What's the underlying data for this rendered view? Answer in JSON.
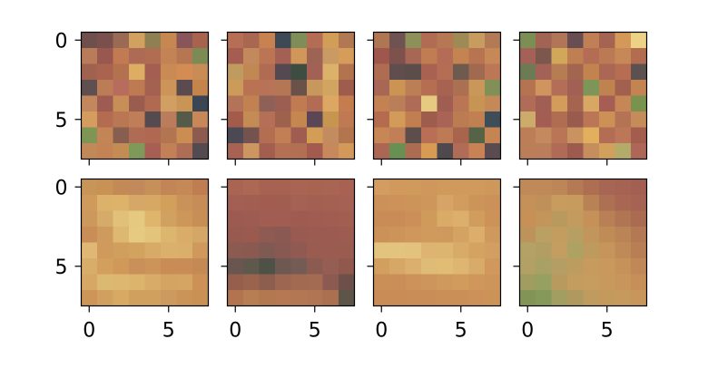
{
  "chart_data": {
    "type": "heatmap",
    "grid": {
      "rows": 2,
      "cols": 4
    },
    "xticks": [
      0,
      5
    ],
    "yticks": [
      0,
      5
    ],
    "xlim": [
      -0.5,
      7.5
    ],
    "ylim": [
      7.5,
      -0.5
    ],
    "panels": [
      {
        "pixels": [
          [
            "#6e4f4d",
            "#79504c",
            "#9a6a55",
            "#d3a15f",
            "#8e8052",
            "#c78751",
            "#88555a",
            "#a8634f"
          ],
          [
            "#ba7c58",
            "#99584f",
            "#c17a51",
            "#ad6a55",
            "#b06d52",
            "#c48355",
            "#b47751",
            "#7c8a53"
          ],
          [
            "#a0624e",
            "#a9634f",
            "#b3714f",
            "#dcad63",
            "#a55f52",
            "#c98a53",
            "#d28c54",
            "#c98c57"
          ],
          [
            "#5f4f50",
            "#bc7d56",
            "#b86c5d",
            "#be7a52",
            "#a46050",
            "#cc9458",
            "#5b4a4f",
            "#c6844d"
          ],
          [
            "#c3875d",
            "#9e5b51",
            "#c88e57",
            "#9b5c50",
            "#b06a52",
            "#d29f63",
            "#c99556",
            "#3c4553"
          ],
          [
            "#d49c5f",
            "#b46c51",
            "#b97753",
            "#c07e58",
            "#564a51",
            "#ba7c5a",
            "#555a49",
            "#c78756"
          ],
          [
            "#7e9553",
            "#c38555",
            "#885e50",
            "#b06b55",
            "#b16852",
            "#b27552",
            "#cc8d52",
            "#8c5a4e"
          ],
          [
            "#c18858",
            "#c38355",
            "#c48c55",
            "#7f9959",
            "#a75e53",
            "#c28056",
            "#ad6e55",
            "#544b51"
          ]
        ]
      },
      {
        "pixels": [
          [
            "#b66e54",
            "#a96751",
            "#c78250",
            "#3d4a55",
            "#7f8d58",
            "#b56c55",
            "#d29e57",
            "#b07953"
          ],
          [
            "#a55d52",
            "#c28a5c",
            "#bc7554",
            "#a46052",
            "#d0965a",
            "#9d6454",
            "#c99a64",
            "#d59c5a"
          ],
          [
            "#bf9b5f",
            "#c28854",
            "#b06b52",
            "#544950",
            "#3f4c42",
            "#a36054",
            "#dcb26a",
            "#b3734e"
          ],
          [
            "#cc9a59",
            "#ba7352",
            "#b87257",
            "#b47756",
            "#6a514a",
            "#c7975c",
            "#d2a461",
            "#9e5c4d"
          ],
          [
            "#b37358",
            "#c18150",
            "#8e6158",
            "#9b5e50",
            "#c07b52",
            "#b16c53",
            "#dba762",
            "#c57d50"
          ],
          [
            "#a35b4c",
            "#c48c55",
            "#b46f56",
            "#9e624c",
            "#c5874f",
            "#5a4654",
            "#c6954f",
            "#bf7a54"
          ],
          [
            "#4b4953",
            "#74524f",
            "#b36e52",
            "#c27f55",
            "#9f5c50",
            "#d49d56",
            "#c38c60",
            "#b3754e"
          ],
          [
            "#a76254",
            "#cd9560",
            "#a25e4f",
            "#b47053",
            "#b27053",
            "#a35b4f",
            "#c7885c",
            "#d3995b"
          ]
        ]
      },
      {
        "pixels": [
          [
            "#b07653",
            "#6e5352",
            "#8d9159",
            "#b06d54",
            "#b67753",
            "#9e8a54",
            "#c89c5f",
            "#b27b55"
          ],
          [
            "#9f574d",
            "#7d524c",
            "#a86754",
            "#c17d52",
            "#b56c56",
            "#c38451",
            "#b87350",
            "#c58856"
          ],
          [
            "#b06c52",
            "#5f4e4d",
            "#5b4e4a",
            "#a96152",
            "#b36e54",
            "#6e5a4f",
            "#a06950",
            "#bc7856"
          ],
          [
            "#a86654",
            "#cb9453",
            "#bc7e54",
            "#b56e52",
            "#a76252",
            "#ab7051",
            "#c9975a",
            "#809056"
          ],
          [
            "#c48152",
            "#ba7e59",
            "#ae6c56",
            "#e6ca82",
            "#a05d52",
            "#b97554",
            "#c79454",
            "#c58957"
          ],
          [
            "#b46b4f",
            "#d29b58",
            "#c17e51",
            "#9e5d4c",
            "#a96455",
            "#bc7c52",
            "#c18052",
            "#3e4e58"
          ],
          [
            "#c68655",
            "#c27e56",
            "#5d4d4b",
            "#b86f55",
            "#bd7a55",
            "#a9644e",
            "#576346",
            "#c58451"
          ],
          [
            "#ac6754",
            "#699053",
            "#ac6c52",
            "#d79b53",
            "#4f484d",
            "#b16c58",
            "#c88253",
            "#594b4f"
          ]
        ]
      },
      {
        "pixels": [
          [
            "#7d8e55",
            "#a16354",
            "#b07657",
            "#684d52",
            "#c07f55",
            "#a56352",
            "#d59859",
            "#ebd284"
          ],
          [
            "#a56157",
            "#7c574e",
            "#d1a75a",
            "#bf7f50",
            "#b56c54",
            "#bb7a53",
            "#c78857",
            "#b26c50"
          ],
          [
            "#6d7b54",
            "#a46257",
            "#b67c52",
            "#a16550",
            "#c3834f",
            "#ab6753",
            "#b76d52",
            "#5d514f"
          ],
          [
            "#b5734f",
            "#d0955e",
            "#b46d57",
            "#a25f53",
            "#7d9658",
            "#bf8350",
            "#a2614e",
            "#c48452"
          ],
          [
            "#b06c57",
            "#a05e55",
            "#d49c5b",
            "#a46450",
            "#d7a763",
            "#a65e54",
            "#c78656",
            "#79924e"
          ],
          [
            "#ccab6b",
            "#a35d53",
            "#b06d52",
            "#9a5b4f",
            "#bb7655",
            "#cd9055",
            "#b57355",
            "#c38c58"
          ],
          [
            "#bc7e56",
            "#c4895e",
            "#ba7456",
            "#c9925e",
            "#e0b05d",
            "#b36d54",
            "#bb7758",
            "#a35c4e"
          ],
          [
            "#bb7e58",
            "#ba7e5a",
            "#b06b57",
            "#9e5a4f",
            "#c58e5c",
            "#d0a05c",
            "#b4ab6a",
            "#ae6657"
          ]
        ]
      },
      {
        "pixels": [
          [
            "#c89559",
            "#c89255",
            "#c48a56",
            "#c2895b",
            "#c6905a",
            "#c38555",
            "#c58958",
            "#c07d51"
          ],
          [
            "#cf9a5c",
            "#dcb26b",
            "#ddb36a",
            "#d6a766",
            "#d7a863",
            "#d3a05c",
            "#c99259",
            "#c68d58"
          ],
          [
            "#cd985b",
            "#d6ab69",
            "#e1c17a",
            "#e6c980",
            "#dfb56d",
            "#d1a161",
            "#cd9759",
            "#c88e57"
          ],
          [
            "#c98d57",
            "#cf9a5e",
            "#ddb871",
            "#e7ca82",
            "#e3c47b",
            "#dcb56e",
            "#d9ac69",
            "#d5a766"
          ],
          [
            "#dfb873",
            "#cf9a5c",
            "#d19f5d",
            "#d2a35f",
            "#d7ab67",
            "#dbb06d",
            "#daaf6b",
            "#cf995d"
          ],
          [
            "#d8ac69",
            "#d39f5c",
            "#d09859",
            "#ca9059",
            "#cc9458",
            "#c98c54",
            "#c98c57",
            "#c48a55"
          ],
          [
            "#d7a865",
            "#dcb971",
            "#ddb770",
            "#dcb56d",
            "#d8ab68",
            "#d4a462",
            "#d5a563",
            "#cc9157"
          ],
          [
            "#ce9559",
            "#d1a05f",
            "#d7aa64",
            "#d0a05f",
            "#d0a05f",
            "#cc9a5e",
            "#ca9458",
            "#c99154"
          ]
        ]
      },
      {
        "pixels": [
          [
            "#a96452",
            "#ac6852",
            "#a86253",
            "#a86252",
            "#aa6453",
            "#a96351",
            "#a96554",
            "#a96252"
          ],
          [
            "#a35f53",
            "#a35e52",
            "#a25d50",
            "#a25d51",
            "#a56153",
            "#a35f51",
            "#a66052",
            "#a56153"
          ],
          [
            "#9d5a50",
            "#9e5b51",
            "#a15d51",
            "#a15d52",
            "#a05b50",
            "#a05c51",
            "#a15d51",
            "#a25e51"
          ],
          [
            "#98594e",
            "#9b5a4e",
            "#8e5a51",
            "#8a5952",
            "#985a51",
            "#9c5b51",
            "#9c5b50",
            "#9e5c51"
          ],
          [
            "#8b5a50",
            "#8a5a50",
            "#7e5a52",
            "#885952",
            "#905a52",
            "#9a5b51",
            "#9a5b51",
            "#995c4e"
          ],
          [
            "#6a5650",
            "#5f584d",
            "#4e5145",
            "#6d5852",
            "#745b54",
            "#8b5b52",
            "#965d52",
            "#91584d"
          ],
          [
            "#94604d",
            "#9a634e",
            "#8c5e4e",
            "#9d6650",
            "#a26a51",
            "#a46b53",
            "#8c5a50",
            "#6d5049"
          ],
          [
            "#b1744e",
            "#b77d53",
            "#b37850",
            "#b57853",
            "#b47754",
            "#b17553",
            "#aa7050",
            "#5d5648"
          ]
        ]
      },
      {
        "pixels": [
          [
            "#d39c60",
            "#d19a5c",
            "#d09a5c",
            "#cf975b",
            "#d09a5c",
            "#d19a5d",
            "#d09a5c",
            "#cf985b"
          ],
          [
            "#cc9158",
            "#cc925a",
            "#cd9459",
            "#cf965b",
            "#d6a466",
            "#d19c5e",
            "#cd9459",
            "#cc9159"
          ],
          [
            "#c98c57",
            "#c98c57",
            "#cb8f57",
            "#d09a5b",
            "#d9ab67",
            "#dcb06c",
            "#d19d5f",
            "#cc9258"
          ],
          [
            "#cc9159",
            "#cd9459",
            "#cf975b",
            "#d09a5c",
            "#cf985c",
            "#d4a261",
            "#dbaf6b",
            "#cf985d"
          ],
          [
            "#e3c47f",
            "#e3c47e",
            "#e2c27c",
            "#ddb472",
            "#dcb571",
            "#d8ab69",
            "#d4a362",
            "#d29e61"
          ],
          [
            "#d39f5e",
            "#d7a767",
            "#dbb06c",
            "#dfbc76",
            "#e0bc74",
            "#deb672",
            "#d9ab69",
            "#d1985d"
          ],
          [
            "#ca8e57",
            "#ca8f58",
            "#cc9259",
            "#cd945b",
            "#cf985c",
            "#d09b5c",
            "#cf975b",
            "#ce955b"
          ],
          [
            "#c98c57",
            "#c98c56",
            "#c98d57",
            "#c98d57",
            "#ca8e57",
            "#ca8f57",
            "#cb9158",
            "#cc9358"
          ]
        ]
      },
      {
        "pixels": [
          [
            "#bf8a57",
            "#c08a58",
            "#bd8656",
            "#b57a54",
            "#ad6e52",
            "#a76653",
            "#a56453",
            "#a35f52"
          ],
          [
            "#c59158",
            "#c0905a",
            "#c89c5e",
            "#c79b5e",
            "#b98254",
            "#ae7052",
            "#a86653",
            "#a66353"
          ],
          [
            "#c69056",
            "#c3955a",
            "#b89a5e",
            "#c49b5f",
            "#c59159",
            "#b88054",
            "#b07654",
            "#aa6b52"
          ],
          [
            "#be935b",
            "#baa062",
            "#c29d5f",
            "#b79e61",
            "#c1955b",
            "#bf8c58",
            "#bb8456",
            "#b37854"
          ],
          [
            "#b2a266",
            "#b29d62",
            "#c49d61",
            "#aea263",
            "#bd9b5f",
            "#c5955b",
            "#c08a58",
            "#b97f54"
          ],
          [
            "#b2a065",
            "#a9a064",
            "#b49e63",
            "#bd9c60",
            "#c69b5d",
            "#c8985c",
            "#c79259",
            "#c18857"
          ],
          [
            "#a19d60",
            "#95a061",
            "#b89a5e",
            "#c29d5f",
            "#c69d5e",
            "#c7995c",
            "#c8955c",
            "#c68e59"
          ],
          [
            "#829557",
            "#84995a",
            "#a29e62",
            "#b0995e",
            "#bf9b5f",
            "#c39a5c",
            "#c69a5d",
            "#c8955a"
          ]
        ]
      }
    ]
  }
}
